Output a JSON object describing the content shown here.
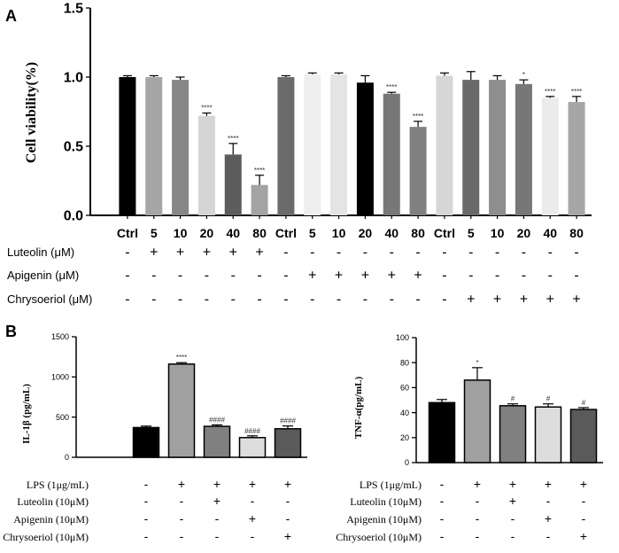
{
  "chart_data": [
    {
      "panel": "A",
      "type": "bar",
      "ylabel": "Cell viability(%)",
      "ylim": [
        0,
        1.5
      ],
      "yticks": [
        "0.0",
        "0.5",
        "1.0",
        "1.5"
      ],
      "tick_values": [
        0,
        0.5,
        1.0,
        1.5
      ],
      "categories": [
        "Ctrl",
        "5",
        "10",
        "20",
        "40",
        "80",
        "Ctrl",
        "5",
        "10",
        "20",
        "40",
        "80",
        "Ctrl",
        "5",
        "10",
        "20",
        "40",
        "80"
      ],
      "values": [
        1.0,
        1.0,
        0.98,
        0.72,
        0.44,
        0.22,
        1.0,
        1.02,
        1.02,
        0.96,
        0.88,
        0.64,
        1.01,
        0.98,
        0.98,
        0.95,
        0.85,
        0.82
      ],
      "errors": [
        0.01,
        0.01,
        0.02,
        0.02,
        0.08,
        0.07,
        0.01,
        0.01,
        0.01,
        0.05,
        0.01,
        0.04,
        0.02,
        0.06,
        0.03,
        0.03,
        0.01,
        0.04
      ],
      "colors": [
        "#000000",
        "#a6a6a6",
        "#868686",
        "#d5d5d5",
        "#5c5c5c",
        "#a3a3a3",
        "#6b6b6b",
        "#eeeeee",
        "#e4e4e4",
        "#000000",
        "#777777",
        "#808080",
        "#d6d6d6",
        "#696969",
        "#8e8e8e",
        "#777777",
        "#ebebeb",
        "#a6a6a6"
      ],
      "annotations": [
        "",
        "",
        "",
        "****",
        "****",
        "****",
        "",
        "",
        "",
        "",
        "****",
        "****",
        "",
        "",
        "",
        "*",
        "****",
        "****"
      ],
      "treatment_rows": [
        {
          "label": "Luteolin (μM)",
          "signs": [
            "-",
            "+",
            "+",
            "+",
            "+",
            "+",
            "-",
            "-",
            "-",
            "-",
            "-",
            "-",
            "-",
            "-",
            "-",
            "-",
            "-",
            "-"
          ]
        },
        {
          "label": "Apigenin (μM)",
          "signs": [
            "-",
            "-",
            "-",
            "-",
            "-",
            "-",
            "-",
            "+",
            "+",
            "+",
            "+",
            "+",
            "-",
            "-",
            "-",
            "-",
            "-",
            "-"
          ]
        },
        {
          "label": "Chrysoeriol (μM)",
          "signs": [
            "-",
            "-",
            "-",
            "-",
            "-",
            "-",
            "-",
            "-",
            "-",
            "-",
            "-",
            "-",
            "-",
            "+",
            "+",
            "+",
            "+",
            "+"
          ]
        }
      ]
    },
    {
      "panel": "B",
      "type": "bar",
      "ylabel": "IL-1β (pg/mL)",
      "ylim": [
        0,
        1500
      ],
      "yticks": [
        "0",
        "500",
        "1000",
        "1500"
      ],
      "tick_values": [
        0,
        500,
        1000,
        1500
      ],
      "values": [
        370,
        1160,
        385,
        245,
        355
      ],
      "errors": [
        18,
        18,
        18,
        22,
        35
      ],
      "colors": [
        "#000000",
        "#a0a0a0",
        "#808080",
        "#dddddd",
        "#5a5a5a"
      ],
      "annotations": [
        "",
        "****",
        "####",
        "####",
        "####"
      ],
      "treatment_rows": [
        {
          "label": "LPS (1μg/mL)",
          "signs": [
            "-",
            "+",
            "+",
            "+",
            "+"
          ]
        },
        {
          "label": "Luteolin (10μM)",
          "signs": [
            "-",
            "-",
            "+",
            "-",
            "-"
          ]
        },
        {
          "label": "Apigenin (10μM)",
          "signs": [
            "-",
            "-",
            "-",
            "+",
            "-"
          ]
        },
        {
          "label": "Chrysoeriol (10μM)",
          "signs": [
            "-",
            "-",
            "-",
            "-",
            "+"
          ]
        }
      ]
    },
    {
      "panel": "",
      "type": "bar",
      "ylabel": "TNF-α(pg/mL)",
      "ylim": [
        0,
        100
      ],
      "yticks": [
        "0",
        "20",
        "40",
        "60",
        "80",
        "100"
      ],
      "tick_values": [
        0,
        20,
        40,
        60,
        80,
        100
      ],
      "values": [
        48,
        66,
        45.5,
        44.5,
        42.5
      ],
      "errors": [
        2.5,
        10,
        1.5,
        2.5,
        1.5
      ],
      "colors": [
        "#000000",
        "#a0a0a0",
        "#808080",
        "#dddddd",
        "#5a5a5a"
      ],
      "annotations": [
        "",
        "*",
        "#",
        "#",
        "#"
      ],
      "treatment_rows": [
        {
          "label": "LPS (1μg/mL)",
          "signs": [
            "-",
            "+",
            "+",
            "+",
            "+"
          ]
        },
        {
          "label": "Luteolin (10μM)",
          "signs": [
            "-",
            "-",
            "+",
            "-",
            "-"
          ]
        },
        {
          "label": "Apigenin (10μM)",
          "signs": [
            "-",
            "-",
            "-",
            "+",
            "-"
          ]
        },
        {
          "label": "Chrysoeriol (10μM)",
          "signs": [
            "-",
            "-",
            "-",
            "-",
            "+"
          ]
        }
      ]
    }
  ]
}
